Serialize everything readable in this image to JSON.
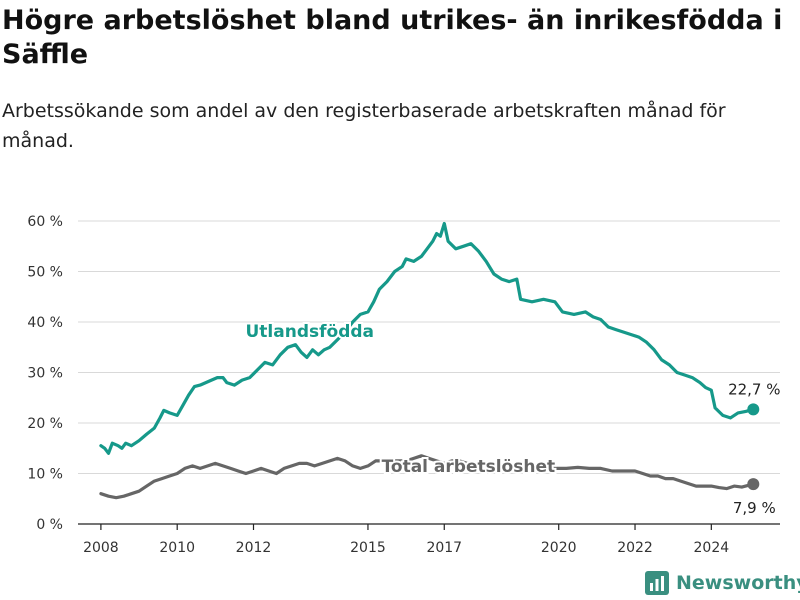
{
  "chart_data": {
    "type": "line",
    "title": "Högre arbetslöshet bland utrikes- än inrikesfödda i Säffle",
    "subtitle": "Arbetssökande som andel av den registerbaserade arbetskraften månad för månad.",
    "ylim": [
      0,
      60
    ],
    "xlim": [
      2007.4,
      2025.8
    ],
    "y_ticks": [
      0,
      10,
      20,
      30,
      40,
      50,
      60
    ],
    "y_tick_labels": [
      "0 %",
      "10 %",
      "20 %",
      "30 %",
      "40 %",
      "50 %",
      "60 %"
    ],
    "x_ticks": [
      2008,
      2010,
      2012,
      2015,
      2017,
      2020,
      2022,
      2024
    ],
    "x_tick_labels": [
      "2008",
      "2010",
      "2012",
      "2015",
      "2017",
      "2020",
      "2022",
      "2024"
    ],
    "grid": "horizontal",
    "series": [
      {
        "name": "Utlandsfödda",
        "color": "#16998a",
        "end_label": "22,7 %",
        "points": [
          [
            2008.0,
            15.5
          ],
          [
            2008.1,
            15.0
          ],
          [
            2008.2,
            14.0
          ],
          [
            2008.3,
            16.0
          ],
          [
            2008.45,
            15.5
          ],
          [
            2008.55,
            15.0
          ],
          [
            2008.65,
            16.0
          ],
          [
            2008.8,
            15.5
          ],
          [
            2009.0,
            16.5
          ],
          [
            2009.2,
            17.8
          ],
          [
            2009.4,
            19.0
          ],
          [
            2009.55,
            21.0
          ],
          [
            2009.65,
            22.5
          ],
          [
            2009.8,
            22.0
          ],
          [
            2010.0,
            21.5
          ],
          [
            2010.15,
            23.5
          ],
          [
            2010.3,
            25.5
          ],
          [
            2010.45,
            27.2
          ],
          [
            2010.6,
            27.5
          ],
          [
            2010.75,
            28.0
          ],
          [
            2010.9,
            28.5
          ],
          [
            2011.05,
            29.0
          ],
          [
            2011.2,
            29.0
          ],
          [
            2011.3,
            28.0
          ],
          [
            2011.5,
            27.5
          ],
          [
            2011.7,
            28.5
          ],
          [
            2011.9,
            29.0
          ],
          [
            2012.1,
            30.5
          ],
          [
            2012.3,
            32.0
          ],
          [
            2012.5,
            31.5
          ],
          [
            2012.7,
            33.5
          ],
          [
            2012.9,
            35.0
          ],
          [
            2013.1,
            35.5
          ],
          [
            2013.25,
            34.0
          ],
          [
            2013.4,
            33.0
          ],
          [
            2013.55,
            34.5
          ],
          [
            2013.7,
            33.5
          ],
          [
            2013.85,
            34.5
          ],
          [
            2014.0,
            35.0
          ],
          [
            2014.2,
            36.5
          ],
          [
            2014.4,
            38.0
          ],
          [
            2014.6,
            40.0
          ],
          [
            2014.8,
            41.5
          ],
          [
            2015.0,
            42.0
          ],
          [
            2015.15,
            44.0
          ],
          [
            2015.3,
            46.5
          ],
          [
            2015.5,
            48.0
          ],
          [
            2015.7,
            50.0
          ],
          [
            2015.9,
            51.0
          ],
          [
            2016.0,
            52.5
          ],
          [
            2016.2,
            52.0
          ],
          [
            2016.4,
            53.0
          ],
          [
            2016.55,
            54.5
          ],
          [
            2016.7,
            56.0
          ],
          [
            2016.8,
            57.5
          ],
          [
            2016.9,
            57.0
          ],
          [
            2017.0,
            59.5
          ],
          [
            2017.1,
            56.0
          ],
          [
            2017.3,
            54.5
          ],
          [
            2017.5,
            55.0
          ],
          [
            2017.7,
            55.5
          ],
          [
            2017.9,
            54.0
          ],
          [
            2018.1,
            52.0
          ],
          [
            2018.3,
            49.5
          ],
          [
            2018.5,
            48.5
          ],
          [
            2018.7,
            48.0
          ],
          [
            2018.9,
            48.5
          ],
          [
            2019.0,
            44.5
          ],
          [
            2019.3,
            44.0
          ],
          [
            2019.6,
            44.5
          ],
          [
            2019.9,
            44.0
          ],
          [
            2020.1,
            42.0
          ],
          [
            2020.4,
            41.5
          ],
          [
            2020.7,
            42.0
          ],
          [
            2020.9,
            41.0
          ],
          [
            2021.1,
            40.5
          ],
          [
            2021.3,
            39.0
          ],
          [
            2021.5,
            38.5
          ],
          [
            2021.7,
            38.0
          ],
          [
            2021.9,
            37.5
          ],
          [
            2022.1,
            37.0
          ],
          [
            2022.3,
            36.0
          ],
          [
            2022.5,
            34.5
          ],
          [
            2022.7,
            32.5
          ],
          [
            2022.9,
            31.5
          ],
          [
            2023.1,
            30.0
          ],
          [
            2023.3,
            29.5
          ],
          [
            2023.5,
            29.0
          ],
          [
            2023.7,
            28.0
          ],
          [
            2023.85,
            27.0
          ],
          [
            2024.0,
            26.5
          ],
          [
            2024.1,
            23.0
          ],
          [
            2024.3,
            21.5
          ],
          [
            2024.5,
            21.0
          ],
          [
            2024.7,
            22.0
          ],
          [
            2024.9,
            22.3
          ],
          [
            2025.1,
            22.7
          ]
        ]
      },
      {
        "name": "Total arbetslöshet",
        "color": "#666666",
        "end_label": "7,9 %",
        "points": [
          [
            2008.0,
            6.0
          ],
          [
            2008.2,
            5.5
          ],
          [
            2008.4,
            5.2
          ],
          [
            2008.6,
            5.5
          ],
          [
            2008.8,
            6.0
          ],
          [
            2009.0,
            6.5
          ],
          [
            2009.2,
            7.5
          ],
          [
            2009.4,
            8.5
          ],
          [
            2009.6,
            9.0
          ],
          [
            2009.8,
            9.5
          ],
          [
            2010.0,
            10.0
          ],
          [
            2010.2,
            11.0
          ],
          [
            2010.4,
            11.5
          ],
          [
            2010.6,
            11.0
          ],
          [
            2010.8,
            11.5
          ],
          [
            2011.0,
            12.0
          ],
          [
            2011.2,
            11.5
          ],
          [
            2011.4,
            11.0
          ],
          [
            2011.6,
            10.5
          ],
          [
            2011.8,
            10.0
          ],
          [
            2012.0,
            10.5
          ],
          [
            2012.2,
            11.0
          ],
          [
            2012.4,
            10.5
          ],
          [
            2012.6,
            10.0
          ],
          [
            2012.8,
            11.0
          ],
          [
            2013.0,
            11.5
          ],
          [
            2013.2,
            12.0
          ],
          [
            2013.4,
            12.0
          ],
          [
            2013.6,
            11.5
          ],
          [
            2013.8,
            12.0
          ],
          [
            2014.0,
            12.5
          ],
          [
            2014.2,
            13.0
          ],
          [
            2014.4,
            12.5
          ],
          [
            2014.6,
            11.5
          ],
          [
            2014.8,
            11.0
          ],
          [
            2015.0,
            11.5
          ],
          [
            2015.2,
            12.5
          ],
          [
            2015.4,
            12.5
          ],
          [
            2015.6,
            12.5
          ],
          [
            2015.8,
            12.5
          ],
          [
            2016.0,
            12.5
          ],
          [
            2016.2,
            13.0
          ],
          [
            2016.4,
            13.5
          ],
          [
            2016.6,
            13.0
          ],
          [
            2016.8,
            12.5
          ],
          [
            2017.0,
            12.0
          ],
          [
            2017.2,
            12.5
          ],
          [
            2017.4,
            12.5
          ],
          [
            2017.6,
            12.0
          ],
          [
            2017.8,
            12.0
          ],
          [
            2018.0,
            12.0
          ],
          [
            2018.2,
            12.0
          ],
          [
            2018.5,
            11.5
          ],
          [
            2018.8,
            11.5
          ],
          [
            2019.0,
            11.5
          ],
          [
            2019.3,
            11.5
          ],
          [
            2019.6,
            11.5
          ],
          [
            2019.9,
            11.0
          ],
          [
            2020.2,
            11.0
          ],
          [
            2020.5,
            11.2
          ],
          [
            2020.8,
            11.0
          ],
          [
            2021.1,
            11.0
          ],
          [
            2021.4,
            10.5
          ],
          [
            2021.7,
            10.5
          ],
          [
            2022.0,
            10.5
          ],
          [
            2022.2,
            10.0
          ],
          [
            2022.4,
            9.5
          ],
          [
            2022.6,
            9.5
          ],
          [
            2022.8,
            9.0
          ],
          [
            2023.0,
            9.0
          ],
          [
            2023.2,
            8.5
          ],
          [
            2023.4,
            8.0
          ],
          [
            2023.6,
            7.5
          ],
          [
            2023.8,
            7.5
          ],
          [
            2024.0,
            7.5
          ],
          [
            2024.2,
            7.2
          ],
          [
            2024.4,
            7.0
          ],
          [
            2024.6,
            7.5
          ],
          [
            2024.8,
            7.3
          ],
          [
            2025.1,
            7.9
          ]
        ]
      }
    ]
  },
  "branding": {
    "logo_text": "Newsworthy"
  }
}
